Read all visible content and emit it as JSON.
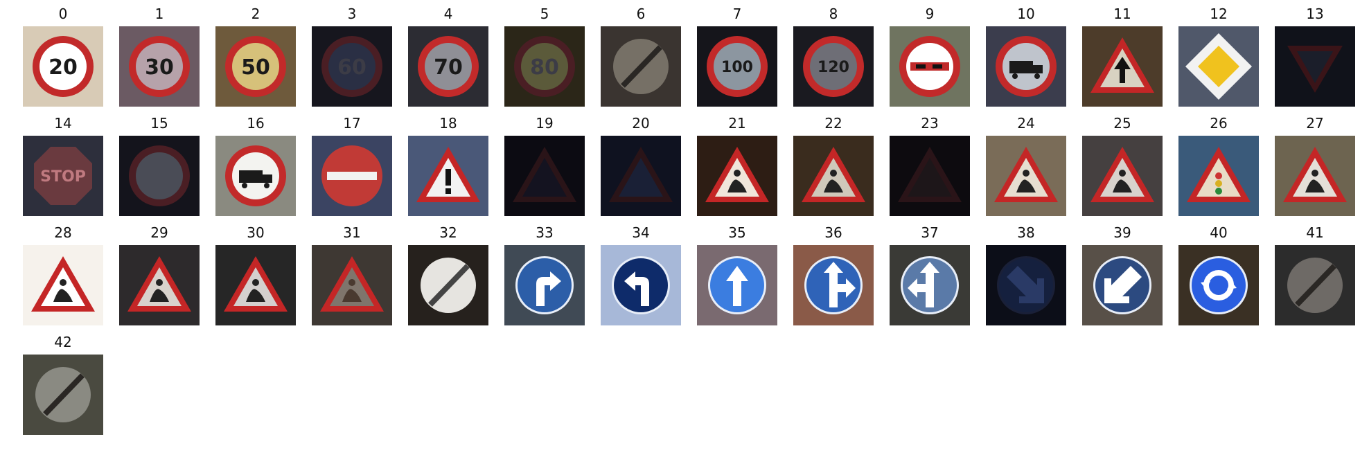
{
  "figure": {
    "classes": [
      {
        "label": "0",
        "shape": "circle-red",
        "bg": "#d8cbb6",
        "inner": "#ffffff",
        "glyph": "20",
        "dark": false
      },
      {
        "label": "1",
        "shape": "circle-red",
        "bg": "#6b5a63",
        "inner": "#b6a2aa",
        "glyph": "30",
        "dark": false
      },
      {
        "label": "2",
        "shape": "circle-red",
        "bg": "#6e5a3c",
        "inner": "#d6c17a",
        "glyph": "50",
        "dark": false
      },
      {
        "label": "3",
        "shape": "circle-red",
        "bg": "#16161e",
        "inner": "#2a2f44",
        "glyph": "60",
        "dark": true
      },
      {
        "label": "4",
        "shape": "circle-red",
        "bg": "#2c2c33",
        "inner": "#8f8f96",
        "glyph": "70",
        "dark": false
      },
      {
        "label": "5",
        "shape": "circle-red",
        "bg": "#2b2618",
        "inner": "#5b5a3a",
        "glyph": "80",
        "dark": true
      },
      {
        "label": "6",
        "shape": "circle-end",
        "bg": "#3a3430",
        "inner": "#767066",
        "glyph": "",
        "dark": true
      },
      {
        "label": "7",
        "shape": "circle-red",
        "bg": "#15151b",
        "inner": "#8c96a0",
        "glyph": "100",
        "dark": false
      },
      {
        "label": "8",
        "shape": "circle-red",
        "bg": "#1a1a20",
        "inner": "#6e6e76",
        "glyph": "120",
        "dark": false
      },
      {
        "label": "9",
        "shape": "circle-red",
        "bg": "#6f7460",
        "inner": "#ffffff",
        "glyph": "cars",
        "dark": false
      },
      {
        "label": "10",
        "shape": "circle-red",
        "bg": "#3b3d4d",
        "inner": "#bfc4cc",
        "glyph": "truck",
        "dark": false
      },
      {
        "label": "11",
        "shape": "triangle",
        "bg": "#4d3c2a",
        "inner": "#d8d2c2",
        "glyph": "arrow",
        "dark": false
      },
      {
        "label": "12",
        "shape": "diamond",
        "bg": "#50586a",
        "inner": "#f0c21e",
        "glyph": "",
        "dark": false
      },
      {
        "label": "13",
        "shape": "yield",
        "bg": "#10121a",
        "inner": "#1b1e2a",
        "glyph": "",
        "dark": true
      },
      {
        "label": "14",
        "shape": "octagon",
        "bg": "#2d2f3c",
        "inner": "#6a3a3f",
        "glyph": "STOP",
        "dark": true
      },
      {
        "label": "15",
        "shape": "circle-red",
        "bg": "#14141c",
        "inner": "#4a4c56",
        "glyph": "",
        "dark": true
      },
      {
        "label": "16",
        "shape": "circle-red",
        "bg": "#8a8a80",
        "inner": "#f3f3f0",
        "glyph": "truck",
        "dark": false
      },
      {
        "label": "17",
        "shape": "no-entry",
        "bg": "#3b4462",
        "inner": "#c13a36",
        "glyph": "",
        "dark": false
      },
      {
        "label": "18",
        "shape": "triangle",
        "bg": "#4a5878",
        "inner": "#f2f2f2",
        "glyph": "!",
        "dark": false
      },
      {
        "label": "19",
        "shape": "triangle-dark",
        "bg": "#0c0b12",
        "inner": "#141320",
        "glyph": "",
        "dark": true
      },
      {
        "label": "20",
        "shape": "triangle-dark",
        "bg": "#0f1220",
        "inner": "#1a2036",
        "glyph": "",
        "dark": true
      },
      {
        "label": "21",
        "shape": "triangle",
        "bg": "#2d1d14",
        "inner": "#f0e6da",
        "glyph": "curve",
        "dark": false
      },
      {
        "label": "22",
        "shape": "triangle",
        "bg": "#3a2c1e",
        "inner": "#cfc8ba",
        "glyph": "bump",
        "dark": false
      },
      {
        "label": "23",
        "shape": "triangle-dark",
        "bg": "#0d0b0f",
        "inner": "#1d1619",
        "glyph": "",
        "dark": true
      },
      {
        "label": "24",
        "shape": "triangle",
        "bg": "#7a6c58",
        "inner": "#e6ded0",
        "glyph": "narrow",
        "dark": false
      },
      {
        "label": "25",
        "shape": "triangle",
        "bg": "#454040",
        "inner": "#d8d2cc",
        "glyph": "work",
        "dark": false
      },
      {
        "label": "26",
        "shape": "triangle",
        "bg": "#3a5a7a",
        "inner": "#e8dcc6",
        "glyph": "light",
        "dark": false
      },
      {
        "label": "27",
        "shape": "triangle",
        "bg": "#6d6450",
        "inner": "#e4dfd8",
        "glyph": "ped",
        "dark": false
      },
      {
        "label": "28",
        "shape": "triangle",
        "bg": "#f6f2ec",
        "inner": "#ffffff",
        "glyph": "kids",
        "dark": false
      },
      {
        "label": "29",
        "shape": "triangle",
        "bg": "#2d2a2c",
        "inner": "#d8d2cc",
        "glyph": "bike",
        "dark": false
      },
      {
        "label": "30",
        "shape": "triangle",
        "bg": "#262626",
        "inner": "#d4d0ce",
        "glyph": "snow",
        "dark": false
      },
      {
        "label": "31",
        "shape": "triangle",
        "bg": "#3e3833",
        "inner": "#7f756c",
        "glyph": "deer",
        "dark": true
      },
      {
        "label": "32",
        "shape": "circle-end",
        "bg": "#26211d",
        "inner": "#e6e4e0",
        "glyph": "",
        "dark": false
      },
      {
        "label": "33",
        "shape": "circle-blue",
        "bg": "#404a55",
        "inner": "#2c5ea8",
        "glyph": "right",
        "dark": false
      },
      {
        "label": "34",
        "shape": "circle-blue",
        "bg": "#a7b8d8",
        "inner": "#0e2b6a",
        "glyph": "left",
        "dark": false
      },
      {
        "label": "35",
        "shape": "circle-blue",
        "bg": "#7a6a70",
        "inner": "#3b7de0",
        "glyph": "up",
        "dark": false
      },
      {
        "label": "36",
        "shape": "circle-blue",
        "bg": "#8a5a48",
        "inner": "#2f63b8",
        "glyph": "upright",
        "dark": false
      },
      {
        "label": "37",
        "shape": "circle-blue",
        "bg": "#3a3a36",
        "inner": "#5a7aa8",
        "glyph": "upleft",
        "dark": false
      },
      {
        "label": "38",
        "shape": "circle-blue",
        "bg": "#0c0e18",
        "inner": "#15203e",
        "glyph": "keepright",
        "dark": true
      },
      {
        "label": "39",
        "shape": "circle-blue",
        "bg": "#585048",
        "inner": "#2c4a80",
        "glyph": "keepleft",
        "dark": false
      },
      {
        "label": "40",
        "shape": "circle-blue",
        "bg": "#3a3024",
        "inner": "#2a5ee0",
        "glyph": "round",
        "dark": false
      },
      {
        "label": "41",
        "shape": "circle-end",
        "bg": "#2c2c2c",
        "inner": "#6e6a66",
        "glyph": "",
        "dark": true
      },
      {
        "label": "42",
        "shape": "circle-end",
        "bg": "#4a4a40",
        "inner": "#8a8a82",
        "glyph": "",
        "dark": true
      }
    ]
  }
}
